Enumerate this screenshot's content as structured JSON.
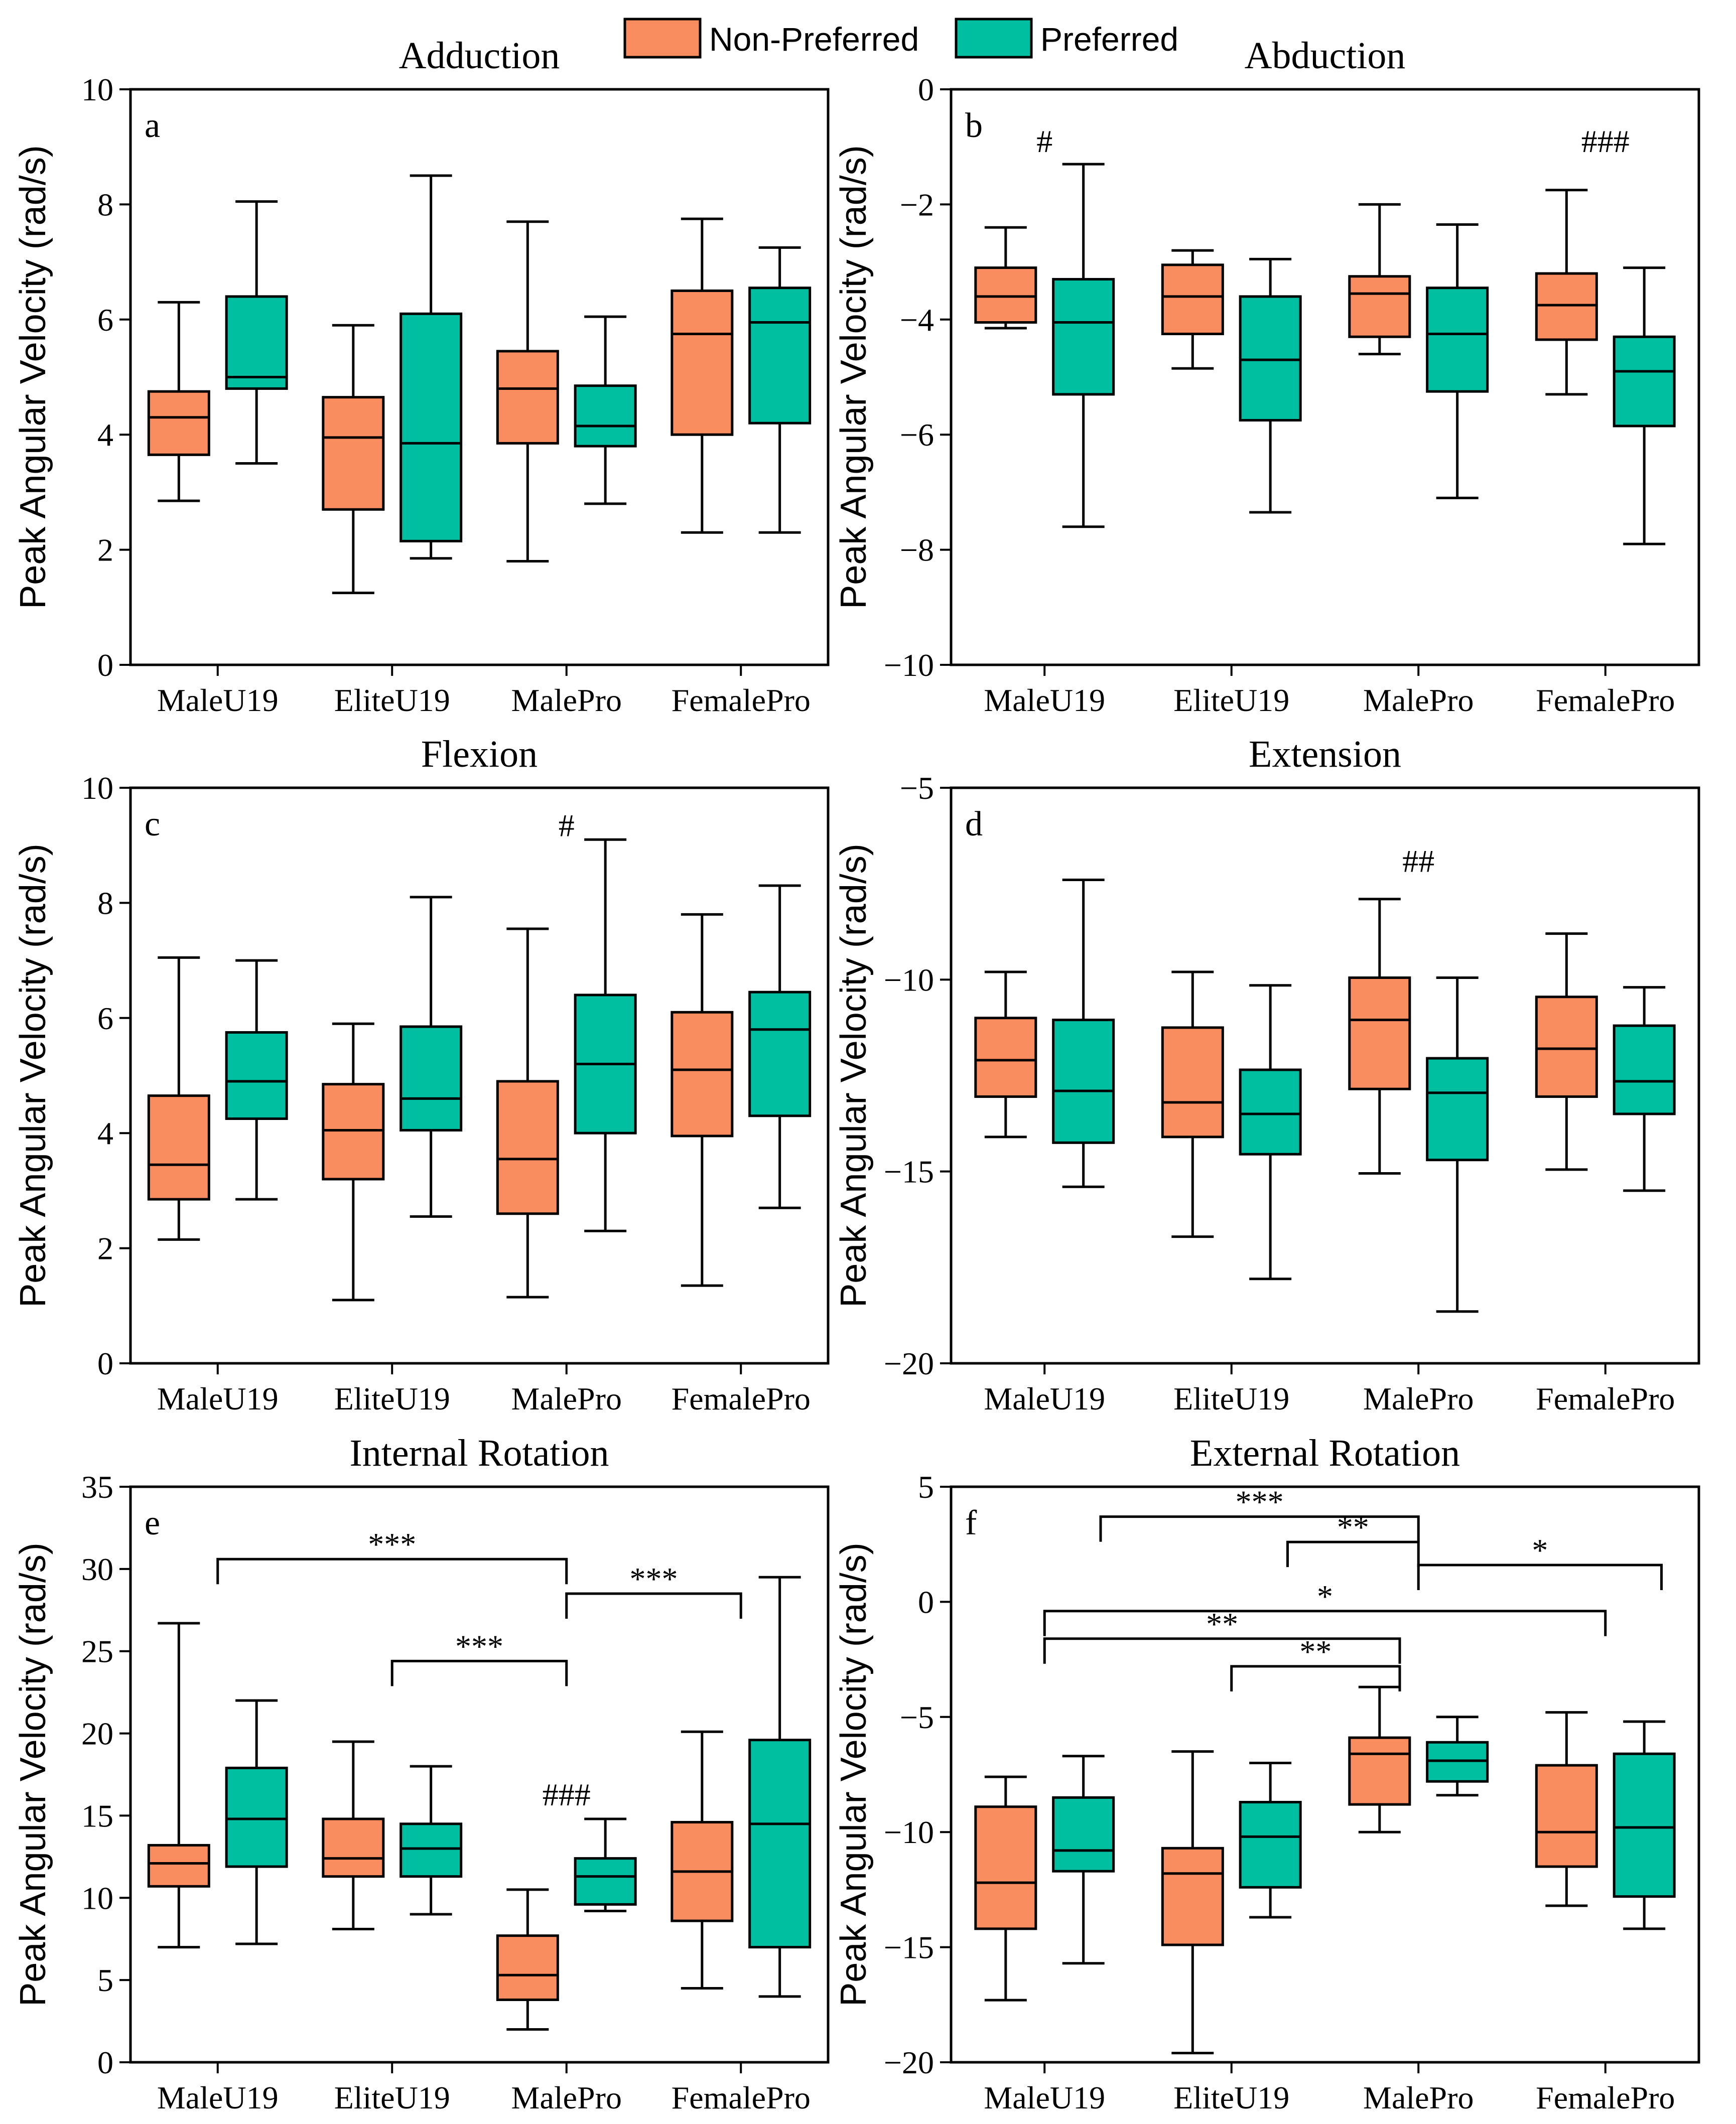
{
  "legend": {
    "items": [
      {
        "label": "Non-Preferred",
        "color": "#FA8D60"
      },
      {
        "label": "Preferred",
        "color": "#00BFA0"
      }
    ]
  },
  "chart_data": [
    {
      "type": "boxplot",
      "letter": "a",
      "title": "Adduction",
      "ylabel": "Peak Angular Velocity (rad/s)",
      "ylim": [
        0,
        10
      ],
      "yticks": [
        0,
        2,
        4,
        6,
        8,
        10
      ],
      "ytick_labels": [
        "0",
        "2",
        "4",
        "6",
        "8",
        "10"
      ],
      "categories": [
        "MaleU19",
        "EliteU19",
        "MalePro",
        "FemalePro"
      ],
      "series": [
        {
          "name": "Non-Preferred",
          "boxes": [
            {
              "min": 2.85,
              "q1": 3.65,
              "median": 4.3,
              "q3": 4.75,
              "max": 6.3
            },
            {
              "min": 1.25,
              "q1": 2.7,
              "median": 3.95,
              "q3": 4.65,
              "max": 5.9
            },
            {
              "min": 1.8,
              "q1": 3.85,
              "median": 4.8,
              "q3": 5.45,
              "max": 7.7
            },
            {
              "min": 2.3,
              "q1": 4.0,
              "median": 5.75,
              "q3": 6.5,
              "max": 7.75
            }
          ]
        },
        {
          "name": "Preferred",
          "boxes": [
            {
              "min": 3.5,
              "q1": 4.8,
              "median": 5.0,
              "q3": 6.4,
              "max": 8.05
            },
            {
              "min": 1.85,
              "q1": 2.15,
              "median": 3.85,
              "q3": 6.1,
              "max": 8.5
            },
            {
              "min": 2.8,
              "q1": 3.8,
              "median": 4.15,
              "q3": 4.85,
              "max": 6.05
            },
            {
              "min": 2.3,
              "q1": 4.2,
              "median": 5.95,
              "q3": 6.55,
              "max": 7.25
            }
          ]
        }
      ],
      "annotations": [],
      "brackets": []
    },
    {
      "type": "boxplot",
      "letter": "b",
      "title": "Abduction",
      "ylabel": "Peak Angular Velocity (rad/s)",
      "ylim": [
        -10,
        0
      ],
      "yticks": [
        0,
        -2,
        -4,
        -6,
        -8,
        -10
      ],
      "ytick_labels": [
        "0",
        "−2",
        "−4",
        "−6",
        "−8",
        "−10"
      ],
      "categories": [
        "MaleU19",
        "EliteU19",
        "MalePro",
        "FemalePro"
      ],
      "series": [
        {
          "name": "Non-Preferred",
          "boxes": [
            {
              "min": -4.15,
              "q1": -4.05,
              "median": -3.6,
              "q3": -3.1,
              "max": -2.4
            },
            {
              "min": -4.85,
              "q1": -4.25,
              "median": -3.6,
              "q3": -3.05,
              "max": -2.8
            },
            {
              "min": -4.6,
              "q1": -4.3,
              "median": -3.55,
              "q3": -3.25,
              "max": -2.0
            },
            {
              "min": -5.3,
              "q1": -4.35,
              "median": -3.75,
              "q3": -3.2,
              "max": -1.75
            }
          ]
        },
        {
          "name": "Preferred",
          "boxes": [
            {
              "min": -7.6,
              "q1": -5.3,
              "median": -4.05,
              "q3": -3.3,
              "max": -1.3
            },
            {
              "min": -7.35,
              "q1": -5.75,
              "median": -4.7,
              "q3": -3.6,
              "max": -2.95
            },
            {
              "min": -7.1,
              "q1": -5.25,
              "median": -4.25,
              "q3": -3.45,
              "max": -2.35
            },
            {
              "min": -7.9,
              "q1": -5.85,
              "median": -4.9,
              "q3": -4.3,
              "max": -3.1
            }
          ]
        }
      ],
      "annotations": [
        {
          "text": "#",
          "category": 0,
          "y": -0.9
        },
        {
          "text": "###",
          "category": 3,
          "y": -0.9
        }
      ],
      "brackets": []
    },
    {
      "type": "boxplot",
      "letter": "c",
      "title": "Flexion",
      "ylabel": "Peak Angular Velocity (rad/s)",
      "ylim": [
        0,
        10
      ],
      "yticks": [
        0,
        2,
        4,
        6,
        8,
        10
      ],
      "ytick_labels": [
        "0",
        "2",
        "4",
        "6",
        "8",
        "10"
      ],
      "categories": [
        "MaleU19",
        "EliteU19",
        "MalePro",
        "FemalePro"
      ],
      "series": [
        {
          "name": "Non-Preferred",
          "boxes": [
            {
              "min": 2.15,
              "q1": 2.85,
              "median": 3.45,
              "q3": 4.65,
              "max": 7.05
            },
            {
              "min": 1.1,
              "q1": 3.2,
              "median": 4.05,
              "q3": 4.85,
              "max": 5.9
            },
            {
              "min": 1.15,
              "q1": 2.6,
              "median": 3.55,
              "q3": 4.9,
              "max": 7.55
            },
            {
              "min": 1.35,
              "q1": 3.95,
              "median": 5.1,
              "q3": 6.1,
              "max": 7.8
            }
          ]
        },
        {
          "name": "Preferred",
          "boxes": [
            {
              "min": 2.85,
              "q1": 4.25,
              "median": 4.9,
              "q3": 5.75,
              "max": 7.0
            },
            {
              "min": 2.55,
              "q1": 4.05,
              "median": 4.6,
              "q3": 5.85,
              "max": 8.1
            },
            {
              "min": 2.3,
              "q1": 4.0,
              "median": 5.2,
              "q3": 6.4,
              "max": 9.1
            },
            {
              "min": 2.7,
              "q1": 4.3,
              "median": 5.8,
              "q3": 6.45,
              "max": 8.3
            }
          ]
        }
      ],
      "annotations": [
        {
          "text": "#",
          "category": 2,
          "y": 9.35
        }
      ],
      "brackets": []
    },
    {
      "type": "boxplot",
      "letter": "d",
      "title": "Extension",
      "ylabel": "Peak Angular Velocity (rad/s)",
      "ylim": [
        -20,
        -5
      ],
      "yticks": [
        -5,
        -10,
        -15,
        -20
      ],
      "ytick_labels": [
        "−5",
        "−10",
        "−15",
        "−20"
      ],
      "categories": [
        "MaleU19",
        "EliteU19",
        "MalePro",
        "FemalePro"
      ],
      "series": [
        {
          "name": "Non-Preferred",
          "boxes": [
            {
              "min": -14.1,
              "q1": -13.05,
              "median": -12.1,
              "q3": -11.0,
              "max": -9.8
            },
            {
              "min": -16.7,
              "q1": -14.1,
              "median": -13.2,
              "q3": -11.25,
              "max": -9.8
            },
            {
              "min": -15.05,
              "q1": -12.85,
              "median": -11.05,
              "q3": -9.95,
              "max": -7.9
            },
            {
              "min": -14.95,
              "q1": -13.05,
              "median": -11.8,
              "q3": -10.45,
              "max": -8.8
            }
          ]
        },
        {
          "name": "Preferred",
          "boxes": [
            {
              "min": -15.4,
              "q1": -14.25,
              "median": -12.9,
              "q3": -11.05,
              "max": -7.4
            },
            {
              "min": -17.8,
              "q1": -14.55,
              "median": -13.5,
              "q3": -12.35,
              "max": -10.15
            },
            {
              "min": -18.65,
              "q1": -14.7,
              "median": -12.95,
              "q3": -12.05,
              "max": -9.95
            },
            {
              "min": -15.5,
              "q1": -13.5,
              "median": -12.65,
              "q3": -11.2,
              "max": -10.2
            }
          ]
        }
      ],
      "annotations": [
        {
          "text": "##",
          "category": 2,
          "y": -6.9
        }
      ],
      "brackets": []
    },
    {
      "type": "boxplot",
      "letter": "e",
      "title": "Internal Rotation",
      "ylabel": "Peak Angular Velocity (rad/s)",
      "ylim": [
        0,
        35
      ],
      "yticks": [
        0,
        5,
        10,
        15,
        20,
        25,
        30,
        35
      ],
      "ytick_labels": [
        "0",
        "5",
        "10",
        "15",
        "20",
        "25",
        "30",
        "35"
      ],
      "categories": [
        "MaleU19",
        "EliteU19",
        "MalePro",
        "FemalePro"
      ],
      "series": [
        {
          "name": "Non-Preferred",
          "boxes": [
            {
              "min": 7.0,
              "q1": 10.7,
              "median": 12.1,
              "q3": 13.2,
              "max": 26.7
            },
            {
              "min": 8.1,
              "q1": 11.3,
              "median": 12.4,
              "q3": 14.8,
              "max": 19.5
            },
            {
              "min": 2.0,
              "q1": 3.8,
              "median": 5.3,
              "q3": 7.7,
              "max": 10.5
            },
            {
              "min": 4.5,
              "q1": 8.6,
              "median": 11.6,
              "q3": 14.6,
              "max": 20.1
            }
          ]
        },
        {
          "name": "Preferred",
          "boxes": [
            {
              "min": 7.2,
              "q1": 11.9,
              "median": 14.8,
              "q3": 17.9,
              "max": 22.0
            },
            {
              "min": 9.0,
              "q1": 11.3,
              "median": 13.0,
              "q3": 14.5,
              "max": 18.0
            },
            {
              "min": 9.2,
              "q1": 9.6,
              "median": 11.3,
              "q3": 12.4,
              "max": 14.8
            },
            {
              "min": 4.0,
              "q1": 7.0,
              "median": 14.5,
              "q3": 19.6,
              "max": 29.5
            }
          ]
        }
      ],
      "annotations": [
        {
          "text": "###",
          "category": 2,
          "y": 16.3
        }
      ],
      "brackets": [
        {
          "from": 0,
          "to": 2,
          "y": 30.6,
          "text": "***"
        },
        {
          "from": 2,
          "to": 3,
          "y": 28.5,
          "text": "***"
        },
        {
          "from": 1,
          "to": 2,
          "y": 24.4,
          "text": "***"
        }
      ]
    },
    {
      "type": "boxplot",
      "letter": "f",
      "title": "External Rotation",
      "ylabel": "Peak Angular Velocity (rad/s)",
      "ylim": [
        -20,
        5
      ],
      "yticks": [
        5,
        0,
        -5,
        -10,
        -15,
        -20
      ],
      "ytick_labels": [
        "5",
        "0",
        "−5",
        "−10",
        "−15",
        "−20"
      ],
      "categories": [
        "MaleU19",
        "EliteU19",
        "MalePro",
        "FemalePro"
      ],
      "series": [
        {
          "name": "Non-Preferred",
          "boxes": [
            {
              "min": -17.3,
              "q1": -14.2,
              "median": -12.2,
              "q3": -8.9,
              "max": -7.6
            },
            {
              "min": -19.6,
              "q1": -14.9,
              "median": -11.8,
              "q3": -10.7,
              "max": -6.5
            },
            {
              "min": -10.0,
              "q1": -8.8,
              "median": -6.6,
              "q3": -5.9,
              "max": -3.7
            },
            {
              "min": -13.2,
              "q1": -11.5,
              "median": -10.0,
              "q3": -7.1,
              "max": -4.8
            }
          ]
        },
        {
          "name": "Preferred",
          "boxes": [
            {
              "min": -15.7,
              "q1": -11.7,
              "median": -10.8,
              "q3": -8.5,
              "max": -6.7
            },
            {
              "min": -13.7,
              "q1": -12.4,
              "median": -10.2,
              "q3": -8.7,
              "max": -7.0
            },
            {
              "min": -8.4,
              "q1": -7.8,
              "median": -6.9,
              "q3": -6.1,
              "max": -5.0
            },
            {
              "min": -14.2,
              "q1": -12.8,
              "median": -9.8,
              "q3": -6.6,
              "max": -5.2
            }
          ]
        }
      ],
      "annotations": [],
      "brackets": [
        {
          "from": 0.3,
          "to": 2.0,
          "y": 3.7,
          "text": "***"
        },
        {
          "from": 1.3,
          "to": 2.0,
          "y": 2.6,
          "text": "**"
        },
        {
          "from": 2.0,
          "to": 3.3,
          "y": 1.6,
          "text": "*"
        },
        {
          "from": 0.0,
          "to": 3.0,
          "y": -0.4,
          "text": "*"
        },
        {
          "from": 0.0,
          "to": 1.9,
          "y": -1.6,
          "text": "**"
        },
        {
          "from": 1.0,
          "to": 1.9,
          "y": -2.8,
          "text": "**"
        }
      ]
    }
  ]
}
